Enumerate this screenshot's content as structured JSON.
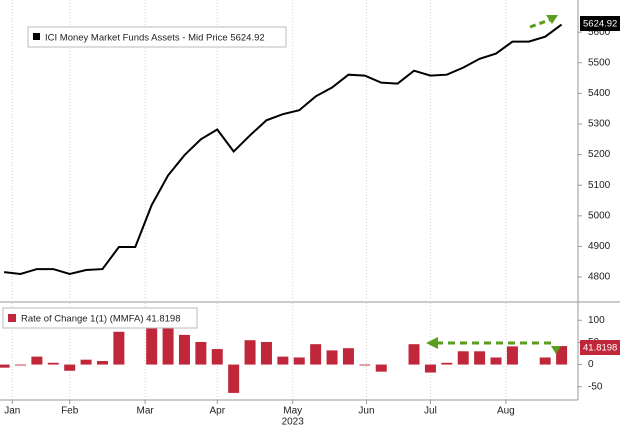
{
  "chart_data": [
    {
      "type": "line",
      "xlim": [
        -0.25,
        35
      ],
      "ylim": [
        4725,
        5705
      ],
      "yticks": [
        4800,
        4900,
        5000,
        5100,
        5200,
        5300,
        5400,
        5500,
        5600
      ],
      "grid": true,
      "series": [
        {
          "name": "ICI Money Market Funds Assets - Mid Price",
          "color": "#000000",
          "values": [
            4816,
            4810,
            4826,
            4826,
            4810,
            4823,
            4826,
            4898,
            4898,
            5035,
            5132,
            5198,
            5250,
            5282,
            5210,
            5263,
            5312,
            5332,
            5345,
            5390,
            5419,
            5461,
            5458,
            5435,
            5432,
            5474,
            5458,
            5461,
            5484,
            5513,
            5530,
            5569,
            5569,
            5585,
            5624.92
          ]
        }
      ]
    },
    {
      "type": "bar",
      "xlim": [
        -0.25,
        35
      ],
      "ylim": [
        -80,
        139
      ],
      "yticks": [
        -50,
        0,
        50,
        100
      ],
      "grid": true,
      "xlabel": "2023",
      "xticks": [
        {
          "value": 0.5,
          "label": "Jan"
        },
        {
          "value": 4.0,
          "label": "Feb"
        },
        {
          "value": 8.6,
          "label": "Mar"
        },
        {
          "value": 13.0,
          "label": "Apr"
        },
        {
          "value": 17.6,
          "label": "May"
        },
        {
          "value": 22.1,
          "label": "Jun"
        },
        {
          "value": 26.0,
          "label": "Jul"
        },
        {
          "value": 30.6,
          "label": "Aug"
        }
      ],
      "series": [
        {
          "name": "Rate of Change 1(1) (MMFA)",
          "color": "#c0273a",
          "values": [
            -7,
            -2,
            18,
            4,
            -14,
            11,
            8,
            74,
            0,
            85,
            85,
            67,
            51,
            35,
            -64,
            55,
            51,
            18,
            16,
            46,
            32,
            37,
            -2,
            -16,
            0,
            46,
            -18,
            4,
            30,
            30,
            16,
            41,
            0,
            16,
            41.8198
          ]
        }
      ]
    }
  ]
}
